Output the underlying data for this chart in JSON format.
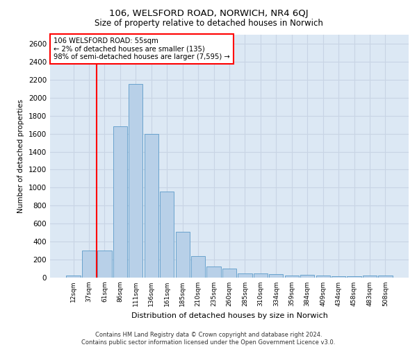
{
  "title1": "106, WELSFORD ROAD, NORWICH, NR4 6QJ",
  "title2": "Size of property relative to detached houses in Norwich",
  "xlabel": "Distribution of detached houses by size in Norwich",
  "ylabel": "Number of detached properties",
  "annotation_line1": "106 WELSFORD ROAD: 55sqm",
  "annotation_line2": "← 2% of detached houses are smaller (135)",
  "annotation_line3": "98% of semi-detached houses are larger (7,595) →",
  "footer1": "Contains HM Land Registry data © Crown copyright and database right 2024.",
  "footer2": "Contains public sector information licensed under the Open Government Licence v3.0.",
  "bar_labels": [
    "12sqm",
    "37sqm",
    "61sqm",
    "86sqm",
    "111sqm",
    "136sqm",
    "161sqm",
    "185sqm",
    "210sqm",
    "235sqm",
    "260sqm",
    "285sqm",
    "310sqm",
    "334sqm",
    "359sqm",
    "384sqm",
    "409sqm",
    "434sqm",
    "458sqm",
    "483sqm",
    "508sqm"
  ],
  "bar_values": [
    25,
    300,
    300,
    1680,
    2150,
    1600,
    960,
    510,
    240,
    125,
    100,
    50,
    50,
    35,
    25,
    30,
    20,
    15,
    15,
    25,
    25
  ],
  "bar_color": "#b8d0e8",
  "bar_edge_color": "#5a9ac8",
  "grid_color": "#c8d4e4",
  "background_color": "#dce8f4",
  "red_line_index": 2,
  "ylim": [
    0,
    2700
  ],
  "yticks": [
    0,
    200,
    400,
    600,
    800,
    1000,
    1200,
    1400,
    1600,
    1800,
    2000,
    2200,
    2400,
    2600
  ]
}
